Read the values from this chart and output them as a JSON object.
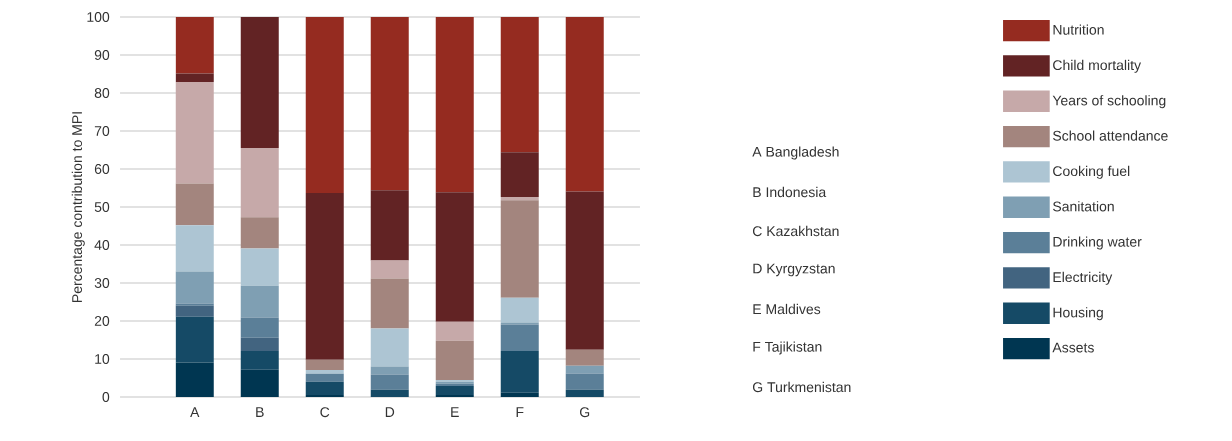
{
  "chart_data": {
    "type": "bar",
    "stacked": true,
    "ylabel": "Percentage contribution to MPI",
    "categories": [
      "A",
      "B",
      "C",
      "D",
      "E",
      "F",
      "G"
    ],
    "series": [
      {
        "name": "Assets",
        "color": "#003651",
        "values": [
          9.1,
          7.2,
          0.5,
          0,
          0.5,
          1.1,
          0
        ]
      },
      {
        "name": "Housing",
        "color": "#154a66",
        "values": [
          12.0,
          4.9,
          3.5,
          1.9,
          2.4,
          11.0,
          1.9
        ]
      },
      {
        "name": "Electricity",
        "color": "#426480",
        "values": [
          2.9,
          3.5,
          0,
          0,
          0,
          0,
          0
        ]
      },
      {
        "name": "Drinking water",
        "color": "#5b7f98",
        "values": [
          0.6,
          5.3,
          2.1,
          4.0,
          0.6,
          7.0,
          4.3
        ]
      },
      {
        "name": "Sanitation",
        "color": "#7f9fb3",
        "values": [
          8.4,
          8.4,
          0,
          2.1,
          0.5,
          0.5,
          2.0
        ]
      },
      {
        "name": "Cooking fuel",
        "color": "#adc5d3",
        "values": [
          12.2,
          9.8,
          1.0,
          10.0,
          0.5,
          6.5,
          0
        ]
      },
      {
        "name": "School attendance",
        "color": "#a3857e",
        "values": [
          11.0,
          8.2,
          2.7,
          13.2,
          10.3,
          25.7,
          4.2
        ]
      },
      {
        "name": "Years of schooling",
        "color": "#c6a9a9",
        "values": [
          26.7,
          18.2,
          0,
          4.7,
          5.0,
          0.8,
          0
        ]
      },
      {
        "name": "Child mortality",
        "color": "#622324",
        "values": [
          2.2,
          34.5,
          43.9,
          18.5,
          34.1,
          11.8,
          41.7
        ]
      },
      {
        "name": "Nutrition",
        "color": "#952b20",
        "values": [
          14.9,
          0,
          46.3,
          45.6,
          46.1,
          35.6,
          45.9
        ]
      }
    ],
    "ylim": [
      0,
      100
    ],
    "yticks": [
      0,
      10,
      20,
      30,
      40,
      50,
      60,
      70,
      80,
      90,
      100
    ],
    "grid": "y",
    "legend": "right",
    "annotations": [
      "A Bangladesh",
      "B Indonesia",
      "C Kazakhstan",
      "D Kyrgyzstan",
      "E Maldives",
      "F Tajikistan",
      "G Turkmenistan"
    ]
  }
}
